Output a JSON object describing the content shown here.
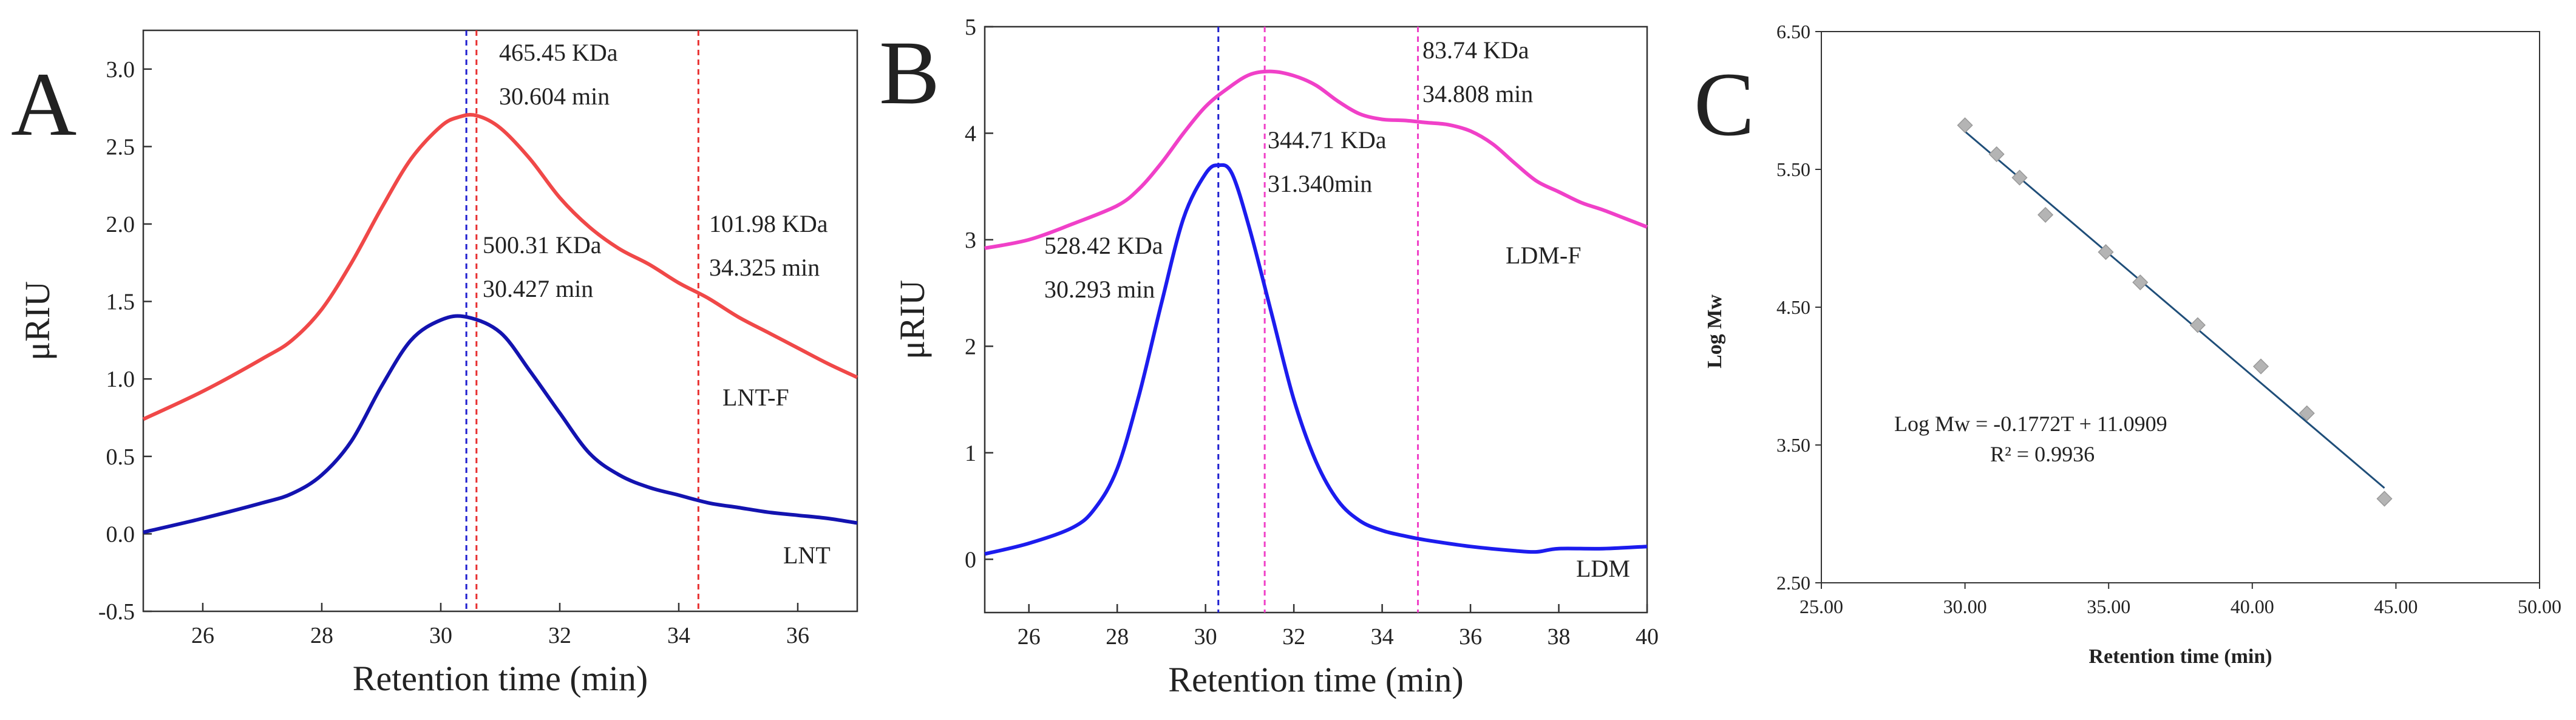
{
  "chart_data": [
    {
      "panel": "A",
      "type": "line",
      "xlabel": "Retention time (min)",
      "ylabel": "μRIU",
      "xlim": [
        25,
        37
      ],
      "ylim": [
        -0.5,
        3.25
      ],
      "xticks": [
        26,
        28,
        30,
        32,
        34,
        36
      ],
      "yticks": [
        -0.5,
        0.0,
        0.5,
        1.0,
        1.5,
        2.0,
        2.5,
        3.0
      ],
      "ytick_labels": [
        "-0.5",
        "0.0",
        "0.5",
        "1.0",
        "1.5",
        "2.0",
        "2.5",
        "3.0"
      ],
      "series": [
        {
          "name": "LNT-F",
          "color": "#f04848",
          "x": [
            25,
            26,
            27,
            27.5,
            28,
            28.5,
            29,
            29.5,
            30,
            30.3,
            30.6,
            31,
            31.5,
            32,
            32.5,
            33,
            33.5,
            34,
            34.5,
            35,
            35.5,
            36,
            36.5,
            37
          ],
          "y": [
            0.74,
            0.92,
            1.13,
            1.25,
            1.45,
            1.75,
            2.1,
            2.42,
            2.63,
            2.69,
            2.7,
            2.62,
            2.42,
            2.17,
            1.98,
            1.84,
            1.74,
            1.62,
            1.52,
            1.4,
            1.3,
            1.2,
            1.1,
            1.01
          ]
        },
        {
          "name": "LNT",
          "color": "#1313b0",
          "x": [
            25,
            26,
            27,
            27.5,
            28,
            28.5,
            29,
            29.5,
            30,
            30.43,
            31,
            31.5,
            32,
            32.5,
            33,
            33.5,
            34,
            34.5,
            35,
            35.5,
            36,
            36.5,
            37
          ],
          "y": [
            0.01,
            0.1,
            0.2,
            0.26,
            0.38,
            0.6,
            0.95,
            1.25,
            1.38,
            1.4,
            1.3,
            1.05,
            0.78,
            0.52,
            0.38,
            0.3,
            0.25,
            0.2,
            0.17,
            0.14,
            0.12,
            0.1,
            0.07
          ]
        }
      ],
      "vlines": [
        {
          "x": 30.43,
          "color": "#2020d0"
        },
        {
          "x": 30.6,
          "color": "#e83030"
        },
        {
          "x": 34.33,
          "color": "#e83030"
        }
      ],
      "annotations": [
        {
          "line1": "465.45 KDa",
          "line2": "30.604 min"
        },
        {
          "line1": "500.31 KDa",
          "line2": "30.427 min"
        },
        {
          "line1": "101.98 KDa",
          "line2": "34.325 min"
        }
      ]
    },
    {
      "panel": "B",
      "type": "line",
      "xlabel": "Retention time (min)",
      "ylabel": "μRIU",
      "xlim": [
        25,
        40
      ],
      "ylim": [
        -0.5,
        5
      ],
      "xticks": [
        26,
        28,
        30,
        32,
        34,
        36,
        38,
        40
      ],
      "yticks": [
        0,
        1,
        2,
        3,
        4,
        5
      ],
      "ytick_labels": [
        "0",
        "1",
        "2",
        "3",
        "4",
        "5"
      ],
      "series": [
        {
          "name": "LDM-F",
          "color": "#f040c8",
          "x": [
            25,
            26,
            27,
            28,
            28.5,
            29,
            29.5,
            30,
            30.5,
            31,
            31.5,
            32,
            32.5,
            33,
            33.5,
            34,
            34.5,
            35,
            35.5,
            36,
            36.5,
            37,
            37.5,
            38,
            38.5,
            39,
            39.5,
            40
          ],
          "y": [
            2.92,
            3.0,
            3.15,
            3.32,
            3.48,
            3.72,
            4.0,
            4.25,
            4.42,
            4.55,
            4.58,
            4.54,
            4.45,
            4.3,
            4.18,
            4.13,
            4.12,
            4.1,
            4.08,
            4.02,
            3.9,
            3.72,
            3.55,
            3.45,
            3.35,
            3.28,
            3.2,
            3.12
          ]
        },
        {
          "name": "LDM",
          "color": "#1c1cee",
          "x": [
            25,
            26,
            27,
            27.5,
            28,
            28.5,
            29,
            29.5,
            30,
            30.3,
            30.6,
            31,
            31.5,
            32,
            32.5,
            33,
            33.5,
            34,
            34.5,
            35,
            36,
            37,
            37.5,
            38,
            39,
            40
          ],
          "y": [
            0.05,
            0.15,
            0.3,
            0.48,
            0.85,
            1.55,
            2.4,
            3.2,
            3.62,
            3.7,
            3.62,
            3.1,
            2.3,
            1.5,
            0.92,
            0.55,
            0.36,
            0.27,
            0.22,
            0.18,
            0.12,
            0.08,
            0.07,
            0.1,
            0.1,
            0.12
          ]
        }
      ],
      "vlines": [
        {
          "x": 30.29,
          "color": "#2020d0"
        },
        {
          "x": 31.34,
          "color": "#f040c8"
        },
        {
          "x": 34.81,
          "color": "#f040c8"
        }
      ],
      "annotations": [
        {
          "line1": "83.74 KDa",
          "line2": "34.808 min"
        },
        {
          "line1": "344.71 KDa",
          "line2": "31.340min"
        },
        {
          "line1": "528.42 KDa",
          "line2": "30.293 min"
        }
      ]
    },
    {
      "panel": "C",
      "type": "scatter",
      "xlabel": "Retention time (min)",
      "ylabel": "Log Mw",
      "xlim": [
        25,
        50
      ],
      "ylim": [
        2.5,
        6.5
      ],
      "xticks": [
        25,
        30,
        35,
        40,
        45,
        50
      ],
      "xtick_labels": [
        "25.00",
        "30.00",
        "35.00",
        "40.00",
        "45.00",
        "50.00"
      ],
      "yticks": [
        2.5,
        3.5,
        4.5,
        5.5,
        6.5
      ],
      "ytick_labels": [
        "2.50",
        "3.50",
        "4.50",
        "5.50",
        "6.50"
      ],
      "points": {
        "x": [
          30.0,
          31.1,
          31.9,
          32.8,
          34.9,
          36.1,
          38.1,
          40.3,
          41.9,
          44.6
        ],
        "y": [
          5.82,
          5.61,
          5.44,
          5.17,
          4.9,
          4.68,
          4.37,
          4.07,
          3.73,
          3.11
        ]
      },
      "point_color": "#b4b4b4",
      "fit": {
        "slope": -0.1772,
        "intercept": 11.0909,
        "x_range": [
          30.0,
          44.6
        ],
        "color": "#1f4e79"
      },
      "equation": "Log Mw = -0.1772T + 11.0909",
      "r_squared": "R² = 0.9936"
    }
  ]
}
